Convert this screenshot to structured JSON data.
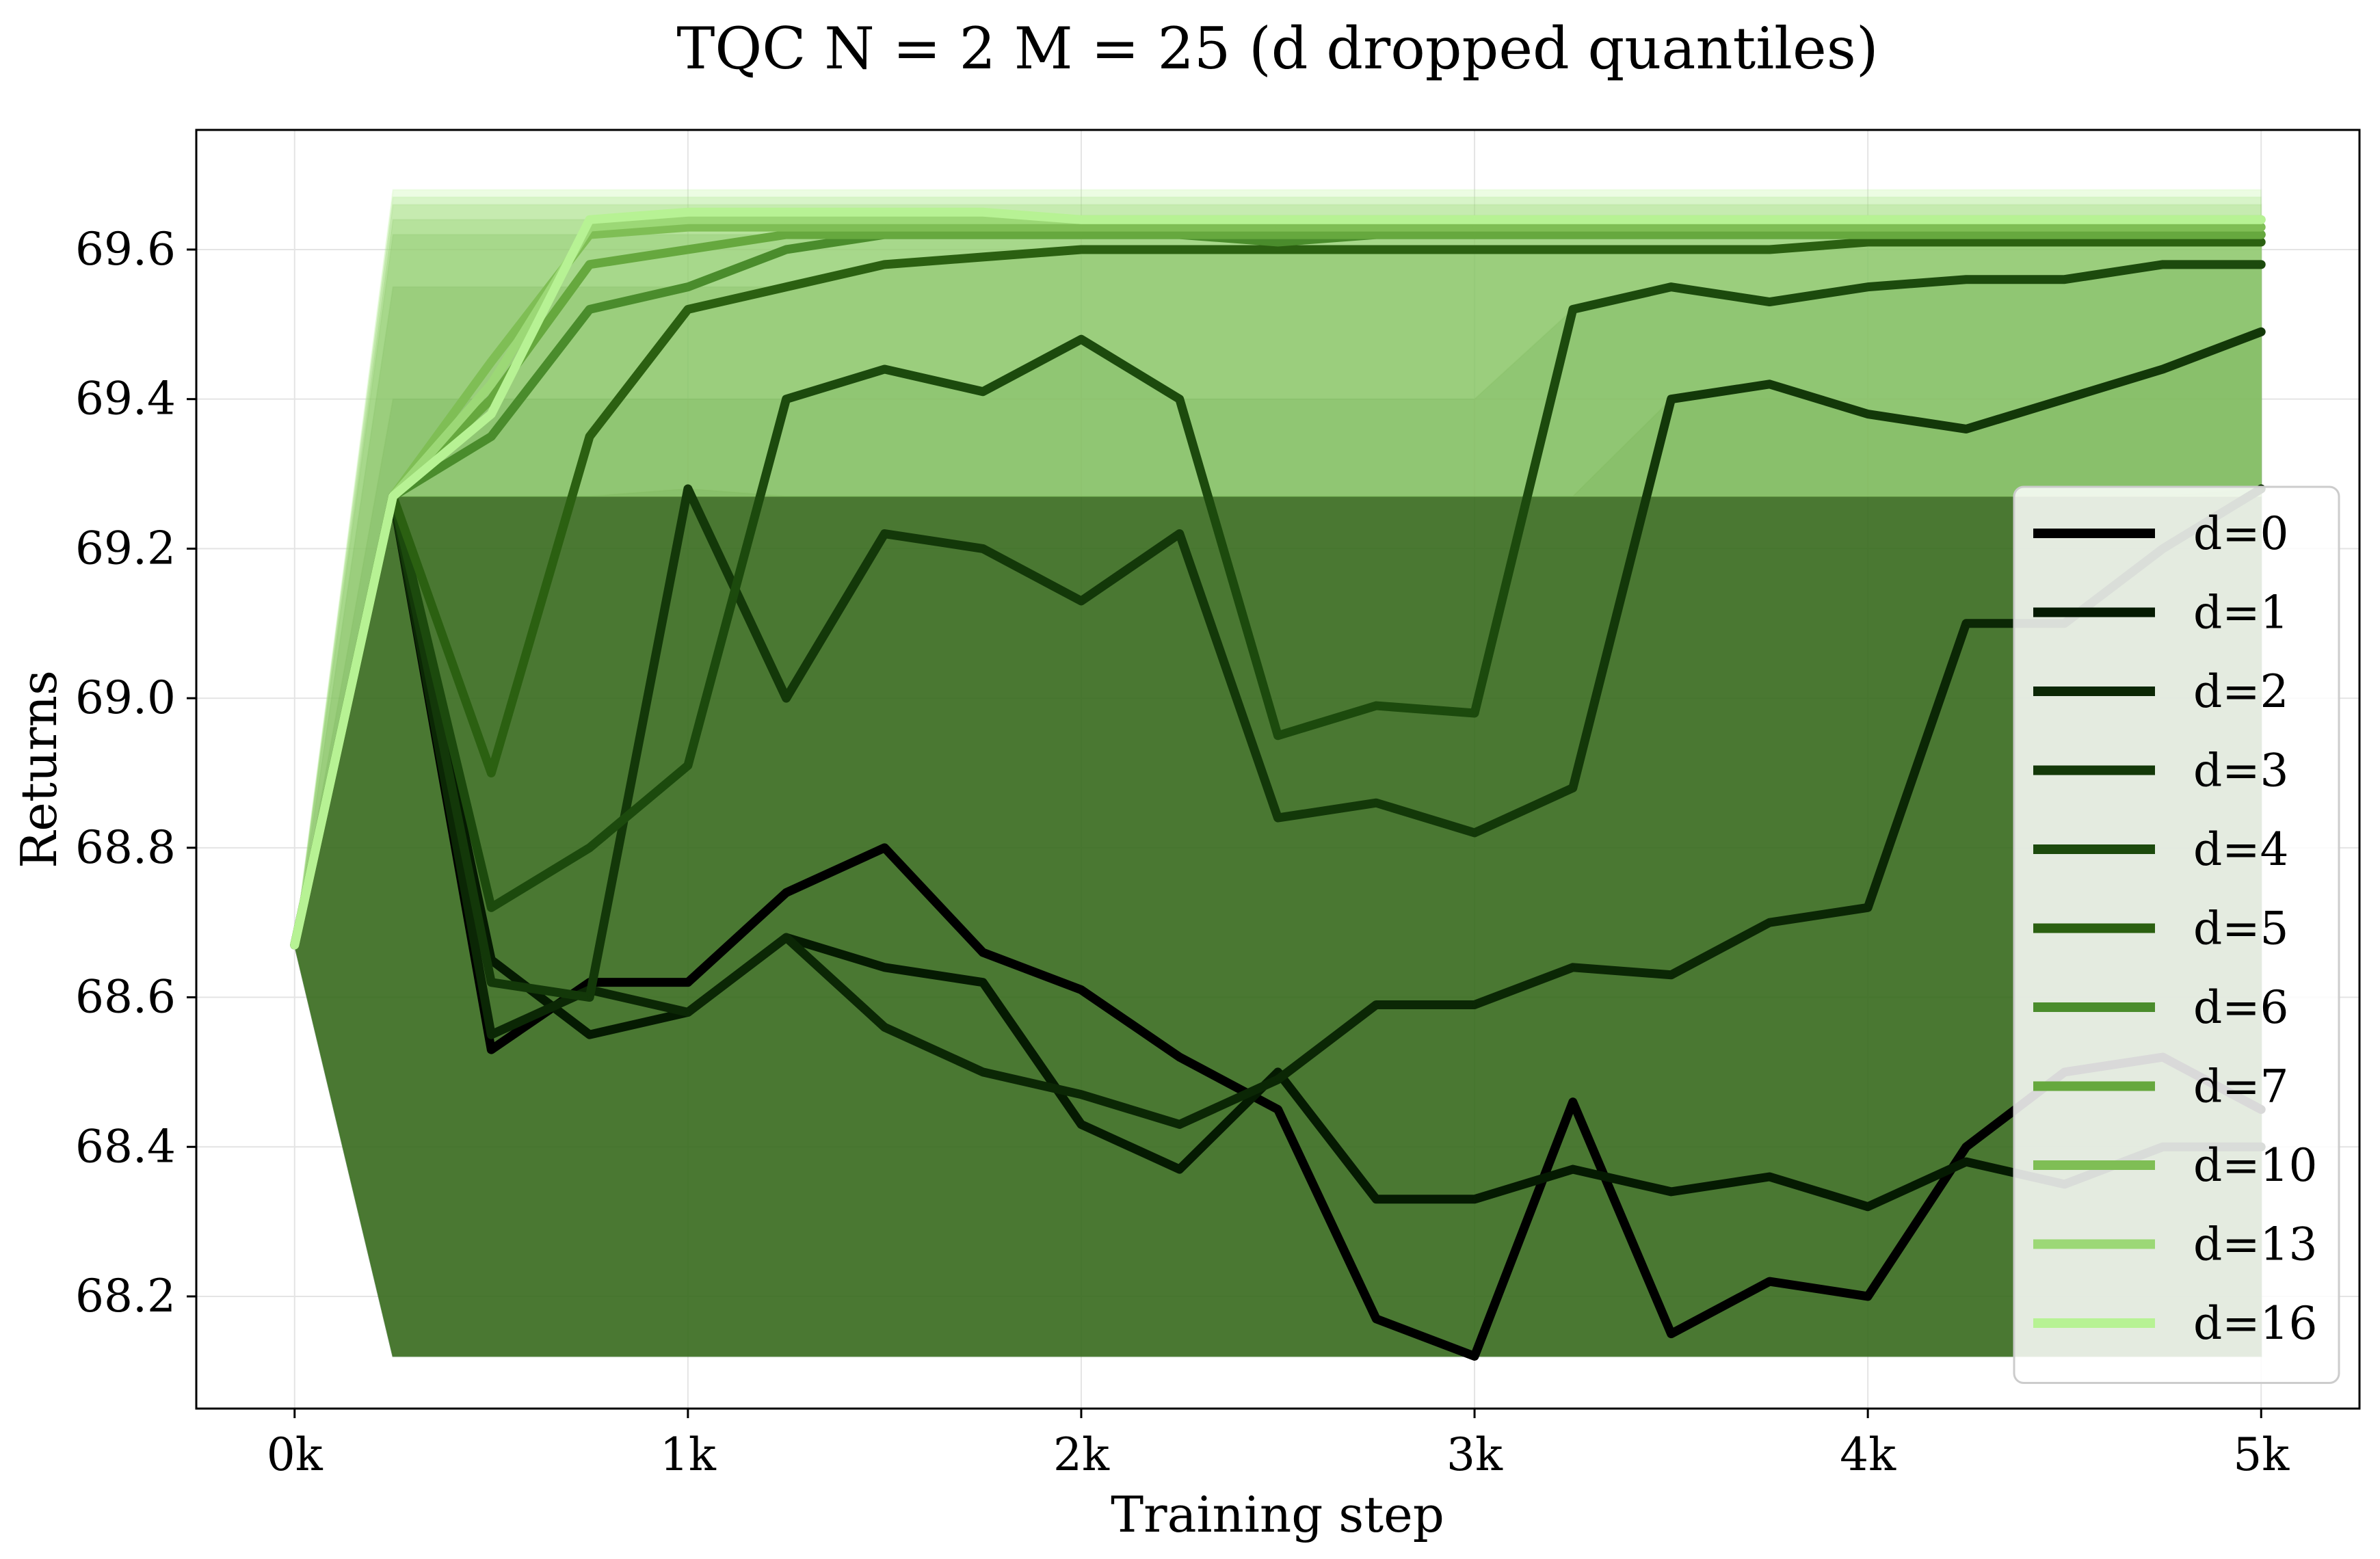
{
  "chart_data": {
    "type": "line",
    "title": "TQC N = 2 M = 25 (d dropped quantiles)",
    "xlabel": "Training step",
    "ylabel": "Returns",
    "xlim": [
      -250,
      5250
    ],
    "ylim": [
      68.05,
      69.76
    ],
    "x_ticks": [
      0,
      1000,
      2000,
      3000,
      4000,
      5000
    ],
    "x_tick_labels": [
      "0k",
      "1k",
      "2k",
      "3k",
      "4k",
      "5k"
    ],
    "y_ticks": [
      68.2,
      68.4,
      68.6,
      68.8,
      69.0,
      69.2,
      69.4,
      69.6
    ],
    "y_tick_labels": [
      "68.2",
      "68.4",
      "68.6",
      "68.8",
      "69.0",
      "69.2",
      "69.4",
      "69.6"
    ],
    "grid": true,
    "legend_position": "right",
    "x": [
      0,
      250,
      500,
      750,
      1000,
      1250,
      1500,
      1750,
      2000,
      2250,
      2500,
      2750,
      3000,
      3250,
      3500,
      3750,
      4000,
      4250,
      4500,
      4750,
      5000
    ],
    "series": [
      {
        "name": "d=0",
        "color": "#000000",
        "values": [
          68.67,
          69.27,
          68.53,
          68.62,
          68.62,
          68.74,
          68.8,
          68.66,
          68.61,
          68.52,
          68.45,
          68.17,
          68.12,
          68.46,
          68.15,
          68.22,
          68.2,
          68.4,
          68.5,
          68.52,
          68.45
        ],
        "band": [
          68.12,
          69.27
        ]
      },
      {
        "name": "d=1",
        "color": "#051a02",
        "values": [
          68.67,
          69.27,
          68.65,
          68.55,
          68.58,
          68.68,
          68.64,
          68.62,
          68.43,
          68.37,
          68.5,
          68.33,
          68.33,
          68.37,
          68.34,
          68.36,
          68.32,
          68.38,
          68.35,
          68.4,
          68.4
        ],
        "band": [
          68.12,
          69.27
        ]
      },
      {
        "name": "d=2",
        "color": "#0b2705",
        "values": [
          68.67,
          69.27,
          68.55,
          68.61,
          68.58,
          68.68,
          68.56,
          68.5,
          68.47,
          68.43,
          68.49,
          68.59,
          68.59,
          68.64,
          68.63,
          68.7,
          68.72,
          69.1,
          69.1,
          69.2,
          69.28
        ],
        "band": [
          68.12,
          69.27
        ]
      },
      {
        "name": "d=3",
        "color": "#133809",
        "values": [
          68.67,
          69.27,
          68.62,
          68.6,
          69.28,
          69.0,
          69.22,
          69.2,
          69.13,
          69.22,
          68.84,
          68.86,
          68.82,
          68.88,
          69.4,
          69.42,
          69.38,
          69.36,
          69.4,
          69.44,
          69.49
        ],
        "band": [
          68.12,
          69.27
        ]
      },
      {
        "name": "d=4",
        "color": "#1c4a0d",
        "values": [
          68.67,
          69.27,
          68.72,
          68.8,
          68.91,
          69.4,
          69.44,
          69.41,
          69.48,
          69.4,
          68.95,
          68.99,
          68.98,
          69.52,
          69.55,
          69.53,
          69.55,
          69.56,
          69.56,
          69.58,
          69.58
        ],
        "band": [
          68.12,
          69.4
        ]
      },
      {
        "name": "d=5",
        "color": "#2b6011",
        "values": [
          68.67,
          69.27,
          68.9,
          69.35,
          69.52,
          69.55,
          69.58,
          69.59,
          69.6,
          69.6,
          69.6,
          69.6,
          69.6,
          69.6,
          69.6,
          69.6,
          69.61,
          69.61,
          69.61,
          69.61,
          69.61
        ],
        "band": [
          68.12,
          69.55
        ]
      },
      {
        "name": "d=6",
        "color": "#4a8c2c",
        "values": [
          68.67,
          69.27,
          69.35,
          69.52,
          69.55,
          69.6,
          69.62,
          69.62,
          69.62,
          69.62,
          69.61,
          69.62,
          69.62,
          69.62,
          69.62,
          69.62,
          69.62,
          69.62,
          69.62,
          69.62,
          69.62
        ],
        "band": [
          68.12,
          69.62
        ]
      },
      {
        "name": "d=7",
        "color": "#66a83e",
        "values": [
          68.67,
          69.27,
          69.4,
          69.58,
          69.6,
          69.62,
          69.62,
          69.62,
          69.62,
          69.62,
          69.62,
          69.62,
          69.62,
          69.62,
          69.62,
          69.62,
          69.62,
          69.62,
          69.62,
          69.62,
          69.62
        ],
        "band": [
          68.12,
          69.64
        ]
      },
      {
        "name": "d=10",
        "color": "#7fbe55",
        "values": [
          68.67,
          69.27,
          69.45,
          69.62,
          69.63,
          69.63,
          69.63,
          69.63,
          69.63,
          69.63,
          69.63,
          69.63,
          69.63,
          69.63,
          69.63,
          69.63,
          69.63,
          69.63,
          69.63,
          69.63,
          69.63
        ],
        "band": [
          69.27,
          69.66
        ]
      },
      {
        "name": "d=13",
        "color": "#9cd876",
        "values": [
          68.67,
          69.27,
          69.42,
          69.63,
          69.64,
          69.64,
          69.64,
          69.64,
          69.64,
          69.64,
          69.64,
          69.64,
          69.64,
          69.64,
          69.64,
          69.64,
          69.64,
          69.64,
          69.64,
          69.64,
          69.64
        ],
        "band": [
          69.27,
          69.67
        ]
      },
      {
        "name": "d=16",
        "color": "#b7f294",
        "values": [
          68.67,
          69.27,
          69.38,
          69.64,
          69.65,
          69.65,
          69.65,
          69.65,
          69.64,
          69.64,
          69.64,
          69.64,
          69.64,
          69.64,
          69.64,
          69.64,
          69.64,
          69.64,
          69.64,
          69.64,
          69.64
        ],
        "band": [
          69.27,
          69.68
        ]
      }
    ]
  }
}
